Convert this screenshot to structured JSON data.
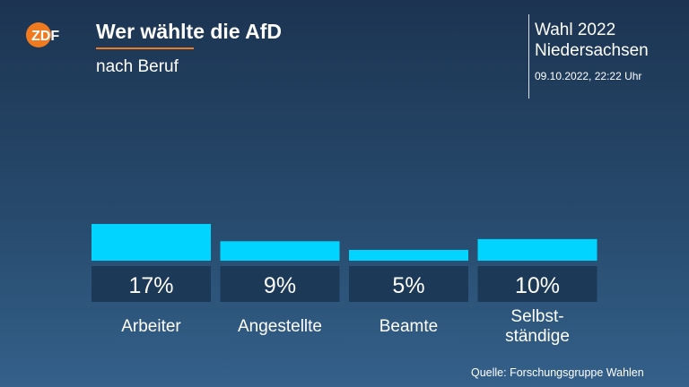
{
  "header": {
    "logo_text": "ZDF",
    "title": "Wer wählte die AfD",
    "subtitle": "nach Beruf",
    "election_line1": "Wahl 2022",
    "election_line2": "Niedersachsen",
    "timestamp": "09.10.2022, 22:22 Uhr"
  },
  "colors": {
    "bar": "#00d4ff",
    "label_box": "#1d3958",
    "accent": "#f07a1f"
  },
  "chart_data": {
    "type": "bar",
    "categories": [
      "Arbeiter",
      "Angestellte",
      "Beamte",
      "Selbst-\nständige"
    ],
    "values": [
      17,
      9,
      5,
      10
    ],
    "value_labels": [
      "17%",
      "9%",
      "5%",
      "10%"
    ],
    "unit": "%",
    "ylim": [
      0,
      17
    ]
  },
  "footer": {
    "source": "Quelle: Forschungsgruppe Wahlen"
  }
}
